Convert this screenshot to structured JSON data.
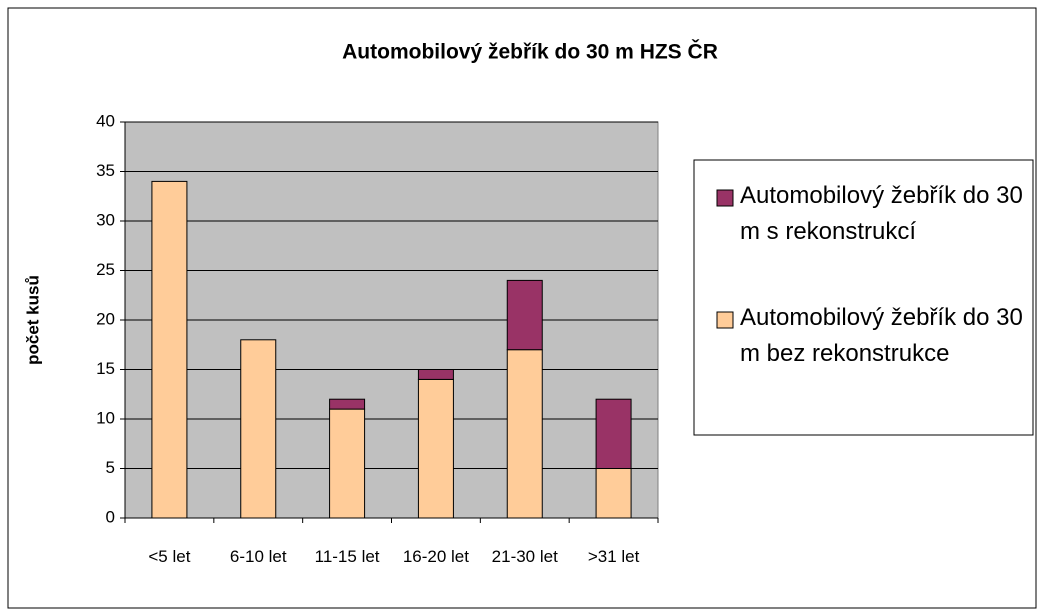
{
  "chart_data": {
    "type": "stacked-bar",
    "title": "Automobilový žebřík do 30 m HZS ČR",
    "ylabel": "počet kusů",
    "categories": [
      "<5 let",
      "6-10 let",
      "11-15 let",
      "16-20 let",
      "21-30 let",
      ">31 let"
    ],
    "series": [
      {
        "name": "Automobilový žebřík do 30 m bez rekonstrukce",
        "color": "#ffcc99",
        "values": [
          34,
          18,
          11,
          14,
          17,
          5
        ]
      },
      {
        "name": "Automobilový žebřík do 30 m s rekonstrukcí",
        "color": "#993366",
        "values": [
          0,
          0,
          1,
          1,
          7,
          7
        ]
      }
    ],
    "ylim": [
      0,
      40
    ],
    "yticks": [
      0,
      5,
      10,
      15,
      20,
      25,
      30,
      35,
      40
    ],
    "grid": true,
    "legend": "right"
  }
}
